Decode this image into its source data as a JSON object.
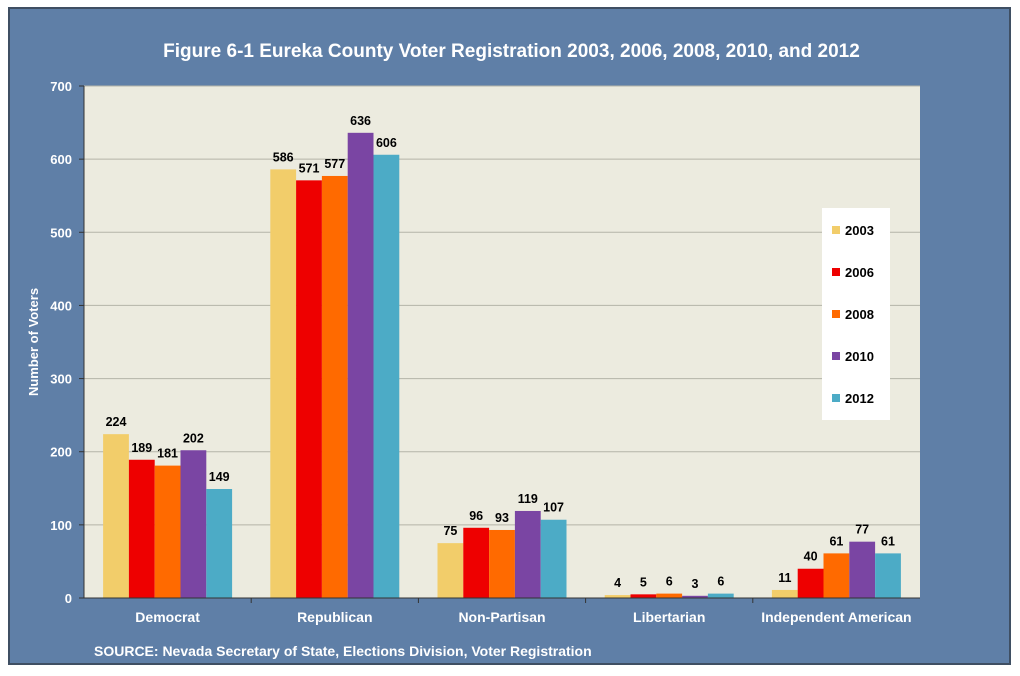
{
  "chart_data": {
    "type": "bar",
    "title": "Figure 6-1 Eureka County Voter Registration 2003, 2006, 2008, 2010, and 2012",
    "ylabel": "Number of Voters",
    "xlabel": "",
    "ylim": [
      0,
      700
    ],
    "yticks": [
      0,
      100,
      200,
      300,
      400,
      500,
      600,
      700
    ],
    "grid": true,
    "legend_position": "right",
    "categories": [
      "Democrat",
      "Republican",
      "Non-Partisan",
      "Libertarian",
      "Independent American"
    ],
    "series": [
      {
        "name": "2003",
        "color": "#f2cd6a",
        "values": [
          224,
          586,
          75,
          4,
          11
        ]
      },
      {
        "name": "2006",
        "color": "#ee0000",
        "values": [
          189,
          571,
          96,
          5,
          40
        ]
      },
      {
        "name": "2008",
        "color": "#ff6a00",
        "values": [
          181,
          577,
          93,
          6,
          61
        ]
      },
      {
        "name": "2010",
        "color": "#7a45a3",
        "values": [
          202,
          636,
          119,
          3,
          77
        ]
      },
      {
        "name": "2012",
        "color": "#4cabc6",
        "values": [
          149,
          606,
          107,
          6,
          61
        ]
      }
    ],
    "source": "SOURCE: Nevada Secretary of State, Elections Division, Voter Registration",
    "colors": {
      "frame": "#5f7fa7",
      "plot_background": "#ecebdf"
    }
  }
}
